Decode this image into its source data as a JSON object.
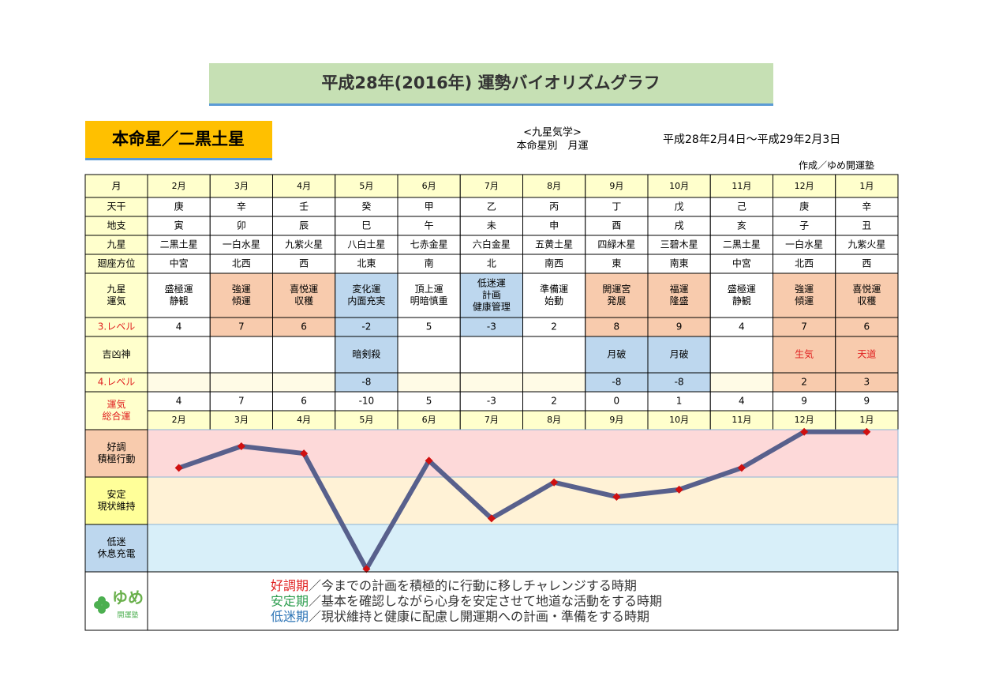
{
  "header": {
    "title": "平成28年(2016年) 運勢バイオリズムグラフ",
    "subtitle": "本命星／二黒土星",
    "system": "<九星気学>",
    "system_sub": "本命星別　月運",
    "period": "平成28年2月4日～平成29年2月3日",
    "author": "作成／ゆめ開運塾"
  },
  "table": {
    "months_label": "月",
    "months": [
      "2月",
      "3月",
      "4月",
      "5月",
      "6月",
      "7月",
      "8月",
      "9月",
      "10月",
      "11月",
      "12月",
      "1月"
    ],
    "rows": [
      {
        "label": [
          "天干"
        ],
        "cells": [
          "庚",
          "辛",
          "壬",
          "癸",
          "甲",
          "乙",
          "丙",
          "丁",
          "戊",
          "己",
          "庚",
          "辛"
        ]
      },
      {
        "label": [
          "地支"
        ],
        "cells": [
          "寅",
          "卯",
          "辰",
          "巳",
          "午",
          "未",
          "申",
          "酉",
          "戌",
          "亥",
          "子",
          "丑"
        ]
      },
      {
        "label": [
          "九星"
        ],
        "cells": [
          "二黒土星",
          "一白水星",
          "九紫火星",
          "八白土星",
          "七赤金星",
          "六白金星",
          "五黄土星",
          "四緑木星",
          "三碧木星",
          "二黒土星",
          "一白水星",
          "九紫火星"
        ]
      },
      {
        "label": [
          "廻座方位"
        ],
        "cells": [
          "中宮",
          "北西",
          "西",
          "北東",
          "南",
          "北",
          "南西",
          "東",
          "南東",
          "中宮",
          "北西",
          "西"
        ]
      },
      {
        "label": [
          "九星",
          "運気"
        ],
        "cells": [
          [
            "盛極運",
            "静観"
          ],
          [
            "強運",
            "傾運"
          ],
          [
            "喜悦運",
            "収穫"
          ],
          [
            "変化運",
            "内面充実"
          ],
          [
            "頂上運",
            "明暗慎重"
          ],
          [
            "低迷運",
            "計画",
            "健康管理"
          ],
          [
            "準備運",
            "始動"
          ],
          [
            "開運宮",
            "発展"
          ],
          [
            "福運",
            "隆盛"
          ],
          [
            "盛極運",
            "静観"
          ],
          [
            "強運",
            "傾運"
          ],
          [
            "喜悦運",
            "収穫"
          ]
        ],
        "fills": [
          "#ffffff",
          "#f8cbad",
          "#f8cbad",
          "#bdd7ee",
          "#ffffff",
          "#bdd7ee",
          "#ffffff",
          "#f8cbad",
          "#f8cbad",
          "#ffffff",
          "#f8cbad",
          "#f8cbad"
        ]
      },
      {
        "label": [
          "3.レベル"
        ],
        "label_color": "#e02020",
        "cells": [
          4,
          7,
          6,
          -2,
          5,
          -3,
          2,
          8,
          9,
          4,
          7,
          6
        ],
        "fills": [
          "#ffffff",
          "#f8cbad",
          "#f8cbad",
          "#bdd7ee",
          "#ffffff",
          "#bdd7ee",
          "#ffffff",
          "#f8cbad",
          "#f8cbad",
          "#ffffff",
          "#f8cbad",
          "#f8cbad"
        ]
      },
      {
        "label": [
          "吉凶神"
        ],
        "cells": [
          null,
          null,
          null,
          "暗剣殺",
          null,
          null,
          null,
          "月破",
          "月破",
          null,
          "生気",
          "天道"
        ],
        "fills": [
          "#ffffff",
          "#ffffff",
          "#ffffff",
          "#bdd7ee",
          "#ffffff",
          "#ffffff",
          "#ffffff",
          "#bdd7ee",
          "#bdd7ee",
          "#ffffff",
          "#f8cbad",
          "#f8cbad"
        ],
        "colors": [
          "#000000",
          "#000000",
          "#000000",
          "#000000",
          "#000000",
          "#000000",
          "#000000",
          "#000000",
          "#000000",
          "#000000",
          "#e02020",
          "#e02020"
        ]
      },
      {
        "label": [
          "4.レベル"
        ],
        "label_color": "#e02020",
        "cells": [
          null,
          null,
          null,
          -8,
          null,
          null,
          null,
          -8,
          -8,
          null,
          2,
          3
        ],
        "fills": [
          "#fffbe6",
          "#fffbe6",
          "#fffbe6",
          "#bdd7ee",
          "#fffbe6",
          "#fffbe6",
          "#fffbe6",
          "#bdd7ee",
          "#bdd7ee",
          "#fffbe6",
          "#f8cbad",
          "#f8cbad"
        ]
      }
    ],
    "total_label": [
      "運気",
      "総合運"
    ],
    "total_label_color": "#e02020"
  },
  "chart_data": {
    "type": "line",
    "categories": [
      "2月",
      "3月",
      "4月",
      "5月",
      "6月",
      "7月",
      "8月",
      "9月",
      "10月",
      "11月",
      "12月",
      "1月"
    ],
    "values": [
      4,
      7,
      6,
      -10,
      5,
      -3,
      2,
      0,
      1,
      4,
      9,
      9
    ],
    "color": "#58608c",
    "marker_color": "#d01010",
    "ylim": [
      -10.4,
      9.3
    ],
    "bands": [
      {
        "label": [
          "好調",
          "積極行動"
        ],
        "color": "#fdd9d9",
        "label_color": "#f8cbad"
      },
      {
        "label": [
          "安定",
          "現状維持"
        ],
        "color": "#fff2d6",
        "label_color": "#ffff99"
      },
      {
        "label": [
          "低迷",
          "休息充電"
        ],
        "color": "#d8eff9",
        "label_color": "#bdd7ee"
      }
    ]
  },
  "legend": {
    "logo": [
      "ゆめ",
      "開運塾"
    ],
    "items": [
      {
        "term": "好調期",
        "color": "#e02020",
        "text": "／今までの計画を積極的に行動に移しチャレンジする時期"
      },
      {
        "term": "安定期",
        "color": "#2e9e50",
        "text": "／基本を確認しながら心身を安定させて地道な活動をする時期"
      },
      {
        "term": "低迷期",
        "color": "#2e75b6",
        "text": "／現状維持と健康に配慮し開運期への計画・準備をする時期"
      }
    ]
  }
}
